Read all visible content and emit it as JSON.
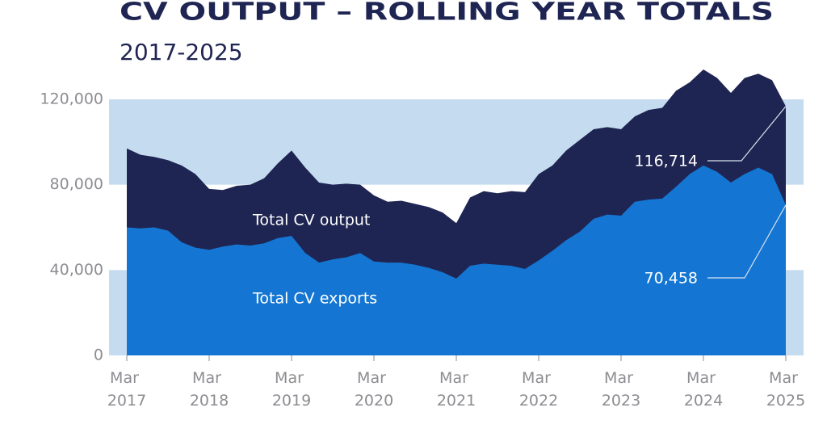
{
  "chart_data": {
    "type": "area",
    "title": "CV OUTPUT – ROLLING YEAR TOTALS",
    "subtitle": "2017-2025",
    "categories": [
      "Mar 2017",
      null,
      null,
      null,
      null,
      null,
      "Mar 2018",
      null,
      null,
      null,
      null,
      null,
      "Mar 2019",
      null,
      null,
      null,
      null,
      null,
      "Mar 2020",
      null,
      null,
      null,
      null,
      null,
      "Mar 2021",
      null,
      null,
      null,
      null,
      null,
      "Mar 2022",
      null,
      null,
      null,
      null,
      null,
      "Mar 2023",
      null,
      null,
      null,
      null,
      null,
      "Mar 2024",
      null,
      null,
      null,
      null,
      null,
      "Mar 2025"
    ],
    "series": [
      {
        "name": "Total CV output",
        "color": "#1f2552",
        "values": [
          97000,
          94000,
          93000,
          91500,
          89000,
          85000,
          78000,
          77500,
          79500,
          80000,
          83000,
          90000,
          96000,
          88000,
          81000,
          80000,
          80500,
          80000,
          75000,
          72000,
          72500,
          71000,
          69500,
          67000,
          62000,
          74000,
          77000,
          76000,
          77000,
          76500,
          85000,
          89000,
          96000,
          101000,
          106000,
          107000,
          106000,
          112000,
          115000,
          116000,
          124000,
          128000,
          134000,
          130000,
          123000,
          130000,
          132000,
          129000,
          116714
        ],
        "value_labels": [
          null,
          null,
          null,
          null,
          null,
          null,
          null,
          null,
          null,
          null,
          null,
          null,
          null,
          null,
          null,
          null,
          null,
          null,
          null,
          null,
          null,
          null,
          null,
          null,
          null,
          null,
          null,
          null,
          null,
          null,
          null,
          null,
          null,
          null,
          null,
          null,
          null,
          null,
          null,
          null,
          null,
          null,
          null,
          null,
          null,
          null,
          null,
          null,
          "116,714"
        ]
      },
      {
        "name": "Total CV exports",
        "color": "#1476d2",
        "values": [
          60000,
          59500,
          60000,
          58500,
          53000,
          50500,
          49500,
          51000,
          52000,
          51500,
          52500,
          55000,
          56000,
          48000,
          43500,
          45000,
          46000,
          48000,
          44000,
          43500,
          43500,
          42500,
          41000,
          39000,
          36000,
          42000,
          43000,
          42500,
          42000,
          40500,
          44500,
          49000,
          54000,
          58000,
          64000,
          66000,
          65500,
          72000,
          73000,
          73500,
          79000,
          85000,
          89000,
          86000,
          81000,
          85000,
          88000,
          85000,
          70458
        ],
        "value_labels": [
          null,
          null,
          null,
          null,
          null,
          null,
          null,
          null,
          null,
          null,
          null,
          null,
          null,
          null,
          null,
          null,
          null,
          null,
          null,
          null,
          null,
          null,
          null,
          null,
          null,
          null,
          null,
          null,
          null,
          null,
          null,
          null,
          null,
          null,
          null,
          null,
          null,
          null,
          null,
          null,
          null,
          null,
          null,
          null,
          null,
          null,
          null,
          null,
          "70,458"
        ]
      }
    ],
    "ylim": [
      0,
      136000
    ],
    "yticks": [
      0,
      {
        "value": 40000,
        "label": "40,000"
      },
      {
        "value": 80000,
        "label": "80,000"
      },
      {
        "value": 120000,
        "label": "120,000"
      }
    ],
    "band_color": "#c5dcf0"
  }
}
